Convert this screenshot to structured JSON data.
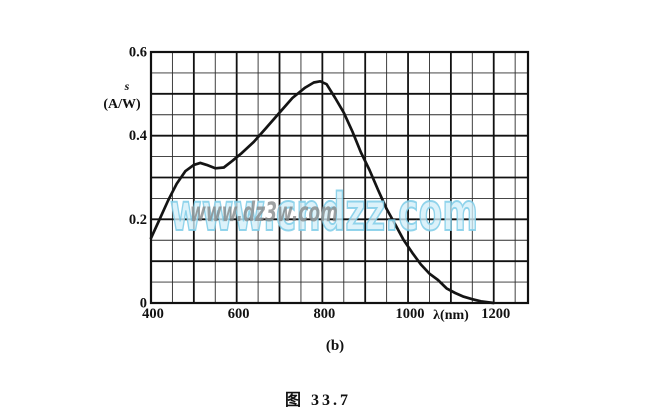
{
  "figure": {
    "sub_caption": "(b)",
    "caption": "图 33.7"
  },
  "watermarks": {
    "primary": {
      "text": "www.cndzz.com",
      "fill": "#d2eef9",
      "outline": "#7fcde8"
    },
    "secondary": {
      "text": "www.dz3w.com",
      "color": "#86898b"
    }
  },
  "chart_data": {
    "type": "line",
    "title": "",
    "xlabel": "λ(nm)",
    "ylabel": "s (A/W)",
    "ylabel_symbol": "s",
    "ylabel_unit": "(A/W)",
    "xlim": [
      400,
      1280
    ],
    "ylim": [
      0,
      0.6
    ],
    "x_ticks": [
      400,
      600,
      800,
      1000,
      1200
    ],
    "y_ticks": [
      0,
      0.2,
      0.4,
      0.6
    ],
    "y_tick_labels": [
      "0",
      "0.2",
      "0.4",
      "0.6"
    ],
    "grid": {
      "visible": true,
      "minor_x_step_nm": 50,
      "minor_y_step": 0.05,
      "major_x_step_nm": 100,
      "major_y_step": 0.1
    },
    "legend": "none",
    "series": [
      {
        "name": "spectral-responsivity-curve",
        "points": [
          [
            400,
            0.155
          ],
          [
            420,
            0.2
          ],
          [
            440,
            0.245
          ],
          [
            460,
            0.285
          ],
          [
            480,
            0.315
          ],
          [
            500,
            0.33
          ],
          [
            515,
            0.335
          ],
          [
            530,
            0.33
          ],
          [
            550,
            0.322
          ],
          [
            570,
            0.324
          ],
          [
            590,
            0.34
          ],
          [
            610,
            0.357
          ],
          [
            640,
            0.385
          ],
          [
            670,
            0.42
          ],
          [
            700,
            0.455
          ],
          [
            730,
            0.49
          ],
          [
            760,
            0.515
          ],
          [
            780,
            0.527
          ],
          [
            795,
            0.53
          ],
          [
            810,
            0.523
          ],
          [
            830,
            0.49
          ],
          [
            850,
            0.455
          ],
          [
            870,
            0.41
          ],
          [
            890,
            0.36
          ],
          [
            910,
            0.318
          ],
          [
            930,
            0.27
          ],
          [
            950,
            0.225
          ],
          [
            970,
            0.188
          ],
          [
            990,
            0.15
          ],
          [
            1010,
            0.12
          ],
          [
            1030,
            0.092
          ],
          [
            1050,
            0.07
          ],
          [
            1070,
            0.055
          ],
          [
            1090,
            0.035
          ],
          [
            1110,
            0.024
          ],
          [
            1130,
            0.015
          ],
          [
            1150,
            0.009
          ],
          [
            1170,
            0.004
          ],
          [
            1200,
            0.0
          ]
        ]
      }
    ]
  }
}
